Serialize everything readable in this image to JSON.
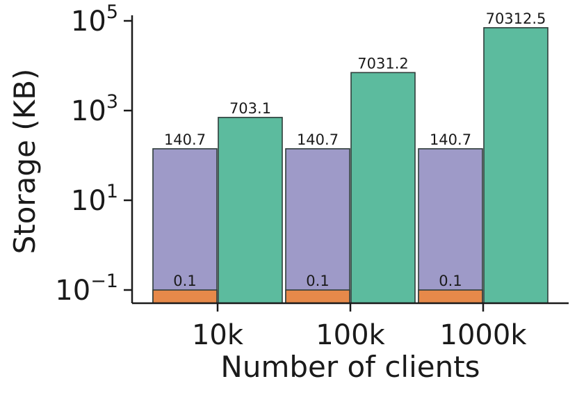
{
  "chart_data": {
    "type": "bar",
    "xlabel": "Number of clients",
    "ylabel": "Storage (KB)",
    "categories": [
      "10k",
      "100k",
      "1000k"
    ],
    "yscale": "log",
    "ylim": [
      0.05,
      100000
    ],
    "yticks": [
      {
        "value": 0.1,
        "base": "10",
        "exp": "−1"
      },
      {
        "value": 10,
        "base": "10",
        "exp": "1"
      },
      {
        "value": 1000,
        "base": "10",
        "exp": "3"
      },
      {
        "value": 100000,
        "base": "10",
        "exp": "5"
      }
    ],
    "grid": false,
    "series": [
      {
        "values": [
          140.7,
          140.7,
          140.7
        ],
        "labels": [
          "140.7",
          "140.7",
          "140.7"
        ],
        "color": "#9e9ac8",
        "slot": 0
      },
      {
        "values": [
          0.1,
          0.1,
          0.1
        ],
        "labels": [
          "0.1",
          "0.1",
          "0.1"
        ],
        "color": "#e6894a",
        "slot": 0
      },
      {
        "values": [
          703.1,
          7031.2,
          70312.5
        ],
        "labels": [
          "703.1",
          "7031.2",
          "70312.5"
        ],
        "color": "#5cbb9e",
        "slot": 1
      }
    ]
  }
}
